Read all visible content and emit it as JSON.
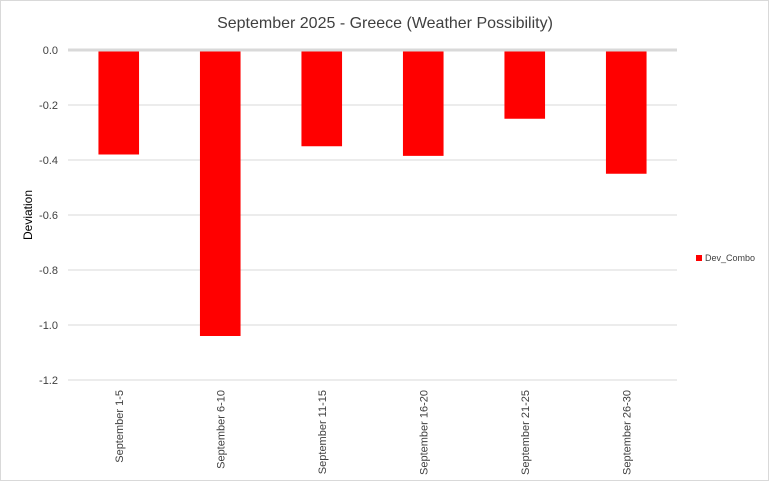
{
  "chart_data": {
    "type": "bar",
    "title": "September 2025 - Greece (Weather Possibility)",
    "xlabel": "",
    "ylabel": "Deviation",
    "categories": [
      "September 1-5",
      "September 6-10",
      "September 11-15",
      "September 16-20",
      "September 21-25",
      "September 26-30"
    ],
    "series": [
      {
        "name": "Dev_Combo",
        "color": "#ff0000",
        "values": [
          -0.38,
          -1.04,
          -0.35,
          -0.385,
          -0.25,
          -0.45
        ]
      }
    ],
    "ylim": [
      -1.2,
      0.0
    ],
    "yticks": [
      "0.0",
      "-0.2",
      "-0.4",
      "-0.6",
      "-0.8",
      "-1.0",
      "-1.2"
    ],
    "grid": true,
    "legend_position": "right"
  }
}
